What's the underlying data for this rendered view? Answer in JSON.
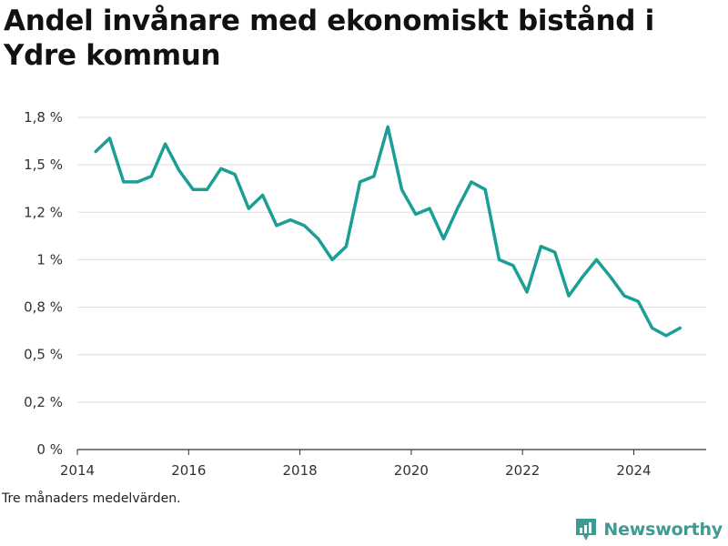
{
  "title": "Andel invånare med ekonomiskt bistånd i Ydre kommun",
  "caption": "Tre månaders medelvärden.",
  "brand": {
    "name": "Newsworthy",
    "icon": "newsworthy-logo-icon"
  },
  "colors": {
    "line": "#1a9e96",
    "grid": "#dddddd",
    "axis": "#333333",
    "brand": "#3f9a92"
  },
  "chart_data": {
    "type": "line",
    "title": "Andel invånare med ekonomiskt bistånd i Ydre kommun",
    "xlabel": "",
    "ylabel": "",
    "xlim": [
      2014,
      2025.3
    ],
    "ylim": [
      0,
      1.75
    ],
    "grid": true,
    "x_ticks": [
      {
        "value": 2014,
        "label": "2014"
      },
      {
        "value": 2016,
        "label": "2016"
      },
      {
        "value": 2018,
        "label": "2018"
      },
      {
        "value": 2020,
        "label": "2020"
      },
      {
        "value": 2022,
        "label": "2022"
      },
      {
        "value": 2024,
        "label": "2024"
      }
    ],
    "y_ticks": [
      {
        "value": 0,
        "label": "0 %"
      },
      {
        "value": 0.25,
        "label": "0,2 %"
      },
      {
        "value": 0.5,
        "label": "0,5 %"
      },
      {
        "value": 0.75,
        "label": "0,8 %"
      },
      {
        "value": 1.0,
        "label": "1 %"
      },
      {
        "value": 1.25,
        "label": "1,2 %"
      },
      {
        "value": 1.5,
        "label": "1,5 %"
      },
      {
        "value": 1.75,
        "label": "1,8 %"
      }
    ],
    "series": [
      {
        "x": [
          2014.33,
          2014.58,
          2014.83,
          2015.08,
          2015.33,
          2015.58,
          2015.83,
          2016.08,
          2016.33,
          2016.58,
          2016.83,
          2017.08,
          2017.33,
          2017.58,
          2017.83,
          2018.08,
          2018.33,
          2018.58,
          2018.83,
          2019.08,
          2019.33,
          2019.58,
          2019.83,
          2020.08,
          2020.33,
          2020.58,
          2020.83,
          2021.08,
          2021.33,
          2021.58,
          2021.83,
          2022.08,
          2022.33,
          2022.58,
          2022.83,
          2023.08,
          2023.33,
          2023.58,
          2023.83,
          2024.08,
          2024.33,
          2024.58,
          2024.83
        ],
        "values": [
          1.57,
          1.64,
          1.41,
          1.41,
          1.44,
          1.61,
          1.47,
          1.37,
          1.37,
          1.48,
          1.45,
          1.27,
          1.34,
          1.18,
          1.21,
          1.18,
          1.11,
          1.0,
          1.07,
          1.41,
          1.44,
          1.7,
          1.37,
          1.24,
          1.27,
          1.11,
          1.27,
          1.41,
          1.37,
          1.0,
          0.97,
          0.83,
          1.07,
          1.04,
          0.81,
          0.91,
          1.0,
          0.91,
          0.81,
          0.78,
          0.64,
          0.6,
          0.64
        ]
      }
    ]
  }
}
